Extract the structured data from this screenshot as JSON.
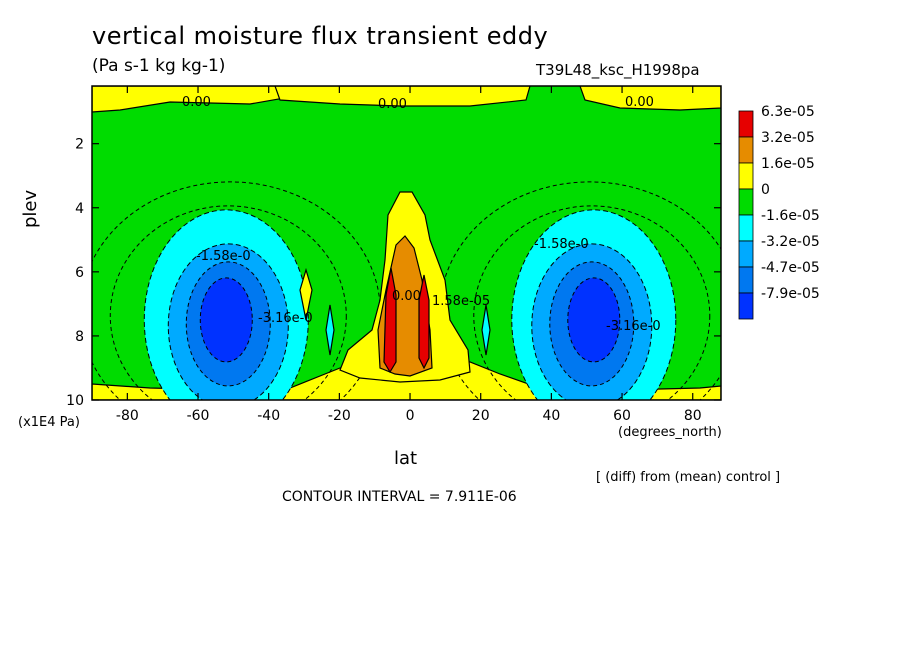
{
  "header": {
    "title": "vertical moisture flux transient eddy",
    "units": "(Pa s-1 kg kg-1)",
    "run_id": "T39L48_ksc_H1998pa"
  },
  "footer": {
    "contour_interval": "CONTOUR INTERVAL = 7.911E-06",
    "diff_note": "[ (diff) from (mean) control ]"
  },
  "colors": {
    "red": "#e60000",
    "dark_orange": "#e68c00",
    "yellow": "#ffff00",
    "green": "#00dc00",
    "cyan": "#00ffff",
    "light_blue": "#00aaff",
    "mid_blue": "#0078f0",
    "blue": "#0032ff"
  },
  "chart_data": {
    "type": "contour",
    "title": "vertical moisture flux transient eddy",
    "xlabel": "lat",
    "x_units": "(degrees_north)",
    "ylabel": "plev",
    "y_units": "(x1E4 Pa)",
    "xlim": [
      -90,
      88
    ],
    "ylim": [
      10,
      0.2
    ],
    "x_ticks": [
      -80,
      -60,
      -40,
      -20,
      0,
      20,
      40,
      60,
      80
    ],
    "y_ticks": [
      2,
      4,
      6,
      8,
      10
    ],
    "legend": {
      "placement": "right",
      "levels": [
        "6.3e-05",
        "3.2e-05",
        "1.6e-05",
        "0",
        "-1.6e-05",
        "-3.2e-05",
        "-4.7e-05",
        "-7.9e-05"
      ],
      "colors": [
        "#e60000",
        "#e68c00",
        "#ffff00",
        "#00dc00",
        "#00ffff",
        "#00aaff",
        "#0078f0",
        "#0032ff"
      ]
    },
    "contour_labels": [
      "0.00",
      "0.00",
      "0.00",
      "-1.58e-0",
      "-1.58e-0",
      "-3.16e-0",
      "-3.16e-0",
      "0.00",
      "1.58e-05"
    ],
    "features": [
      {
        "kind": "minimum",
        "lat": -52,
        "plev": 7.5,
        "value_min": "-7.9e-05"
      },
      {
        "kind": "minimum",
        "lat": 52,
        "plev": 7.5,
        "value_min": "-7.9e-05"
      },
      {
        "kind": "maximum",
        "lat": -4,
        "plev": 8,
        "value_max": "6.3e-05"
      },
      {
        "kind": "maximum",
        "lat": 5,
        "plev": 8,
        "value_max": "6.3e-05"
      }
    ],
    "contour_interval": 7.911e-06
  }
}
